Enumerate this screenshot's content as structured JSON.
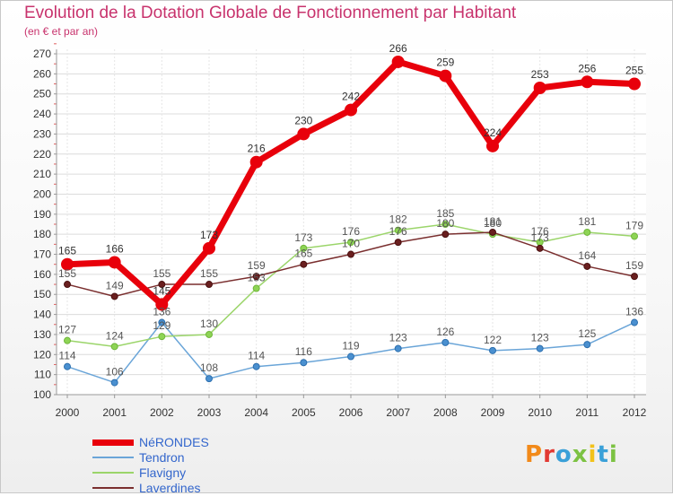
{
  "title": "Evolution de la Dotation Globale de Fonctionnement par Habitant",
  "subtitle": "(en € et par an)",
  "brand": "Proxiti",
  "brand_colors": [
    "#f28a1a",
    "#e23a33",
    "#3aa0d8",
    "#7cc242",
    "#f2c21a",
    "#3aa0d8",
    "#7cc242"
  ],
  "chart_data": {
    "type": "line",
    "title": "Evolution de la Dotation Globale de Fonctionnement par Habitant",
    "subtitle": "(en € et par an)",
    "xlabel": "",
    "ylabel": "",
    "x": [
      "2000",
      "2001",
      "2002",
      "2003",
      "2004",
      "2005",
      "2006",
      "2007",
      "2008",
      "2009",
      "2010",
      "2011",
      "2012"
    ],
    "ylim": [
      100,
      270
    ],
    "yticks": [
      100,
      110,
      120,
      130,
      140,
      150,
      160,
      170,
      180,
      190,
      200,
      210,
      220,
      230,
      240,
      250,
      260,
      270
    ],
    "grid": true,
    "legend_position": "bottom-left",
    "series": [
      {
        "name": "NéRONDES",
        "color": "#e8000b",
        "values": [
          165,
          166,
          145,
          173,
          216,
          230,
          242,
          266,
          259,
          224,
          253,
          256,
          255
        ],
        "labels": [
          "165",
          "166",
          "145",
          "173",
          "216",
          "230",
          "242",
          "266",
          "259",
          "224",
          "253",
          "256",
          "255"
        ]
      },
      {
        "name": "Tendron",
        "color": "#6aa5d8",
        "values": [
          114,
          106,
          136,
          108,
          114,
          116,
          119,
          123,
          126,
          122,
          123,
          125,
          136
        ],
        "labels": [
          "114",
          "106",
          "136",
          "108",
          "114",
          "116",
          "119",
          "123",
          "126",
          "122",
          "123",
          "125",
          "136"
        ]
      },
      {
        "name": "Flavigny",
        "color": "#9bd56a",
        "values": [
          127,
          124,
          129,
          130,
          153,
          173,
          176,
          182,
          185,
          180,
          176,
          181,
          179
        ],
        "labels": [
          "127",
          "124",
          "129",
          "130",
          "153",
          "173",
          "176",
          "182",
          "185",
          "180",
          "176",
          "181",
          "179"
        ]
      },
      {
        "name": "Laverdines",
        "color": "#7a2f2f",
        "values": [
          155,
          149,
          155,
          155,
          159,
          165,
          170,
          176,
          180,
          181,
          173,
          164,
          159
        ],
        "labels": [
          "155",
          "149",
          "155",
          "155",
          "159",
          "165",
          "170",
          "176",
          "180",
          "181",
          "173",
          "164",
          "159"
        ]
      }
    ]
  }
}
